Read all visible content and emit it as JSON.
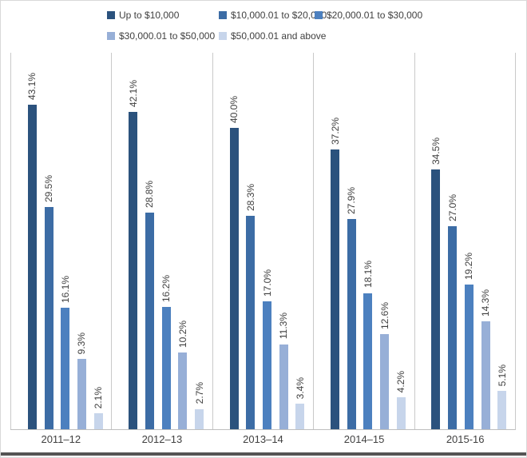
{
  "chart_data": {
    "type": "bar",
    "title": "",
    "xlabel": "",
    "ylabel": "",
    "ylim": [
      0,
      50
    ],
    "grid": "vertical-category-separators",
    "legend_position": "top",
    "value_label_format": "percent-one-decimal",
    "categories": [
      "2011–12",
      "2012–13",
      "2013–14",
      "2014–15",
      "2015-16"
    ],
    "series": [
      {
        "name": "Up to $10,000",
        "color": "#2b527d",
        "values": [
          43.1,
          42.1,
          40.0,
          37.2,
          34.5
        ]
      },
      {
        "name": "$10,000.01 to $20,000",
        "color": "#3c6ca5",
        "values": [
          29.5,
          28.8,
          28.3,
          27.9,
          27.0
        ]
      },
      {
        "name": "$20,000.01 to $30,000",
        "color": "#4c80bf",
        "values": [
          16.1,
          16.2,
          17.0,
          18.1,
          19.2
        ]
      },
      {
        "name": "$30,000.01 to $50,000",
        "color": "#97afd7",
        "values": [
          9.3,
          10.2,
          11.3,
          12.6,
          14.3
        ]
      },
      {
        "name": "$50,000.01 and above",
        "color": "#c7d5eb",
        "values": [
          2.1,
          2.7,
          3.4,
          4.2,
          5.1
        ]
      }
    ],
    "data_labels": [
      [
        "43.1%",
        "42.1%",
        "40.0%",
        "37.2%",
        "34.5%"
      ],
      [
        "29.5%",
        "28.8%",
        "28.3%",
        "27.9%",
        "27.0%"
      ],
      [
        "16.1%",
        "16.2%",
        "17.0%",
        "18.1%",
        "19.2%"
      ],
      [
        "9.3%",
        "10.2%",
        "11.3%",
        "12.6%",
        "14.3%"
      ],
      [
        "2.1%",
        "2.7%",
        "3.4%",
        "4.2%",
        "5.1%"
      ]
    ]
  },
  "colors": {
    "gridline": "#c9c9c9",
    "axis_line": "#bfbfbf",
    "text": "#404040",
    "frame_border": "#d9d9d9",
    "bottom_edge": "#545454",
    "background": "#ffffff"
  }
}
